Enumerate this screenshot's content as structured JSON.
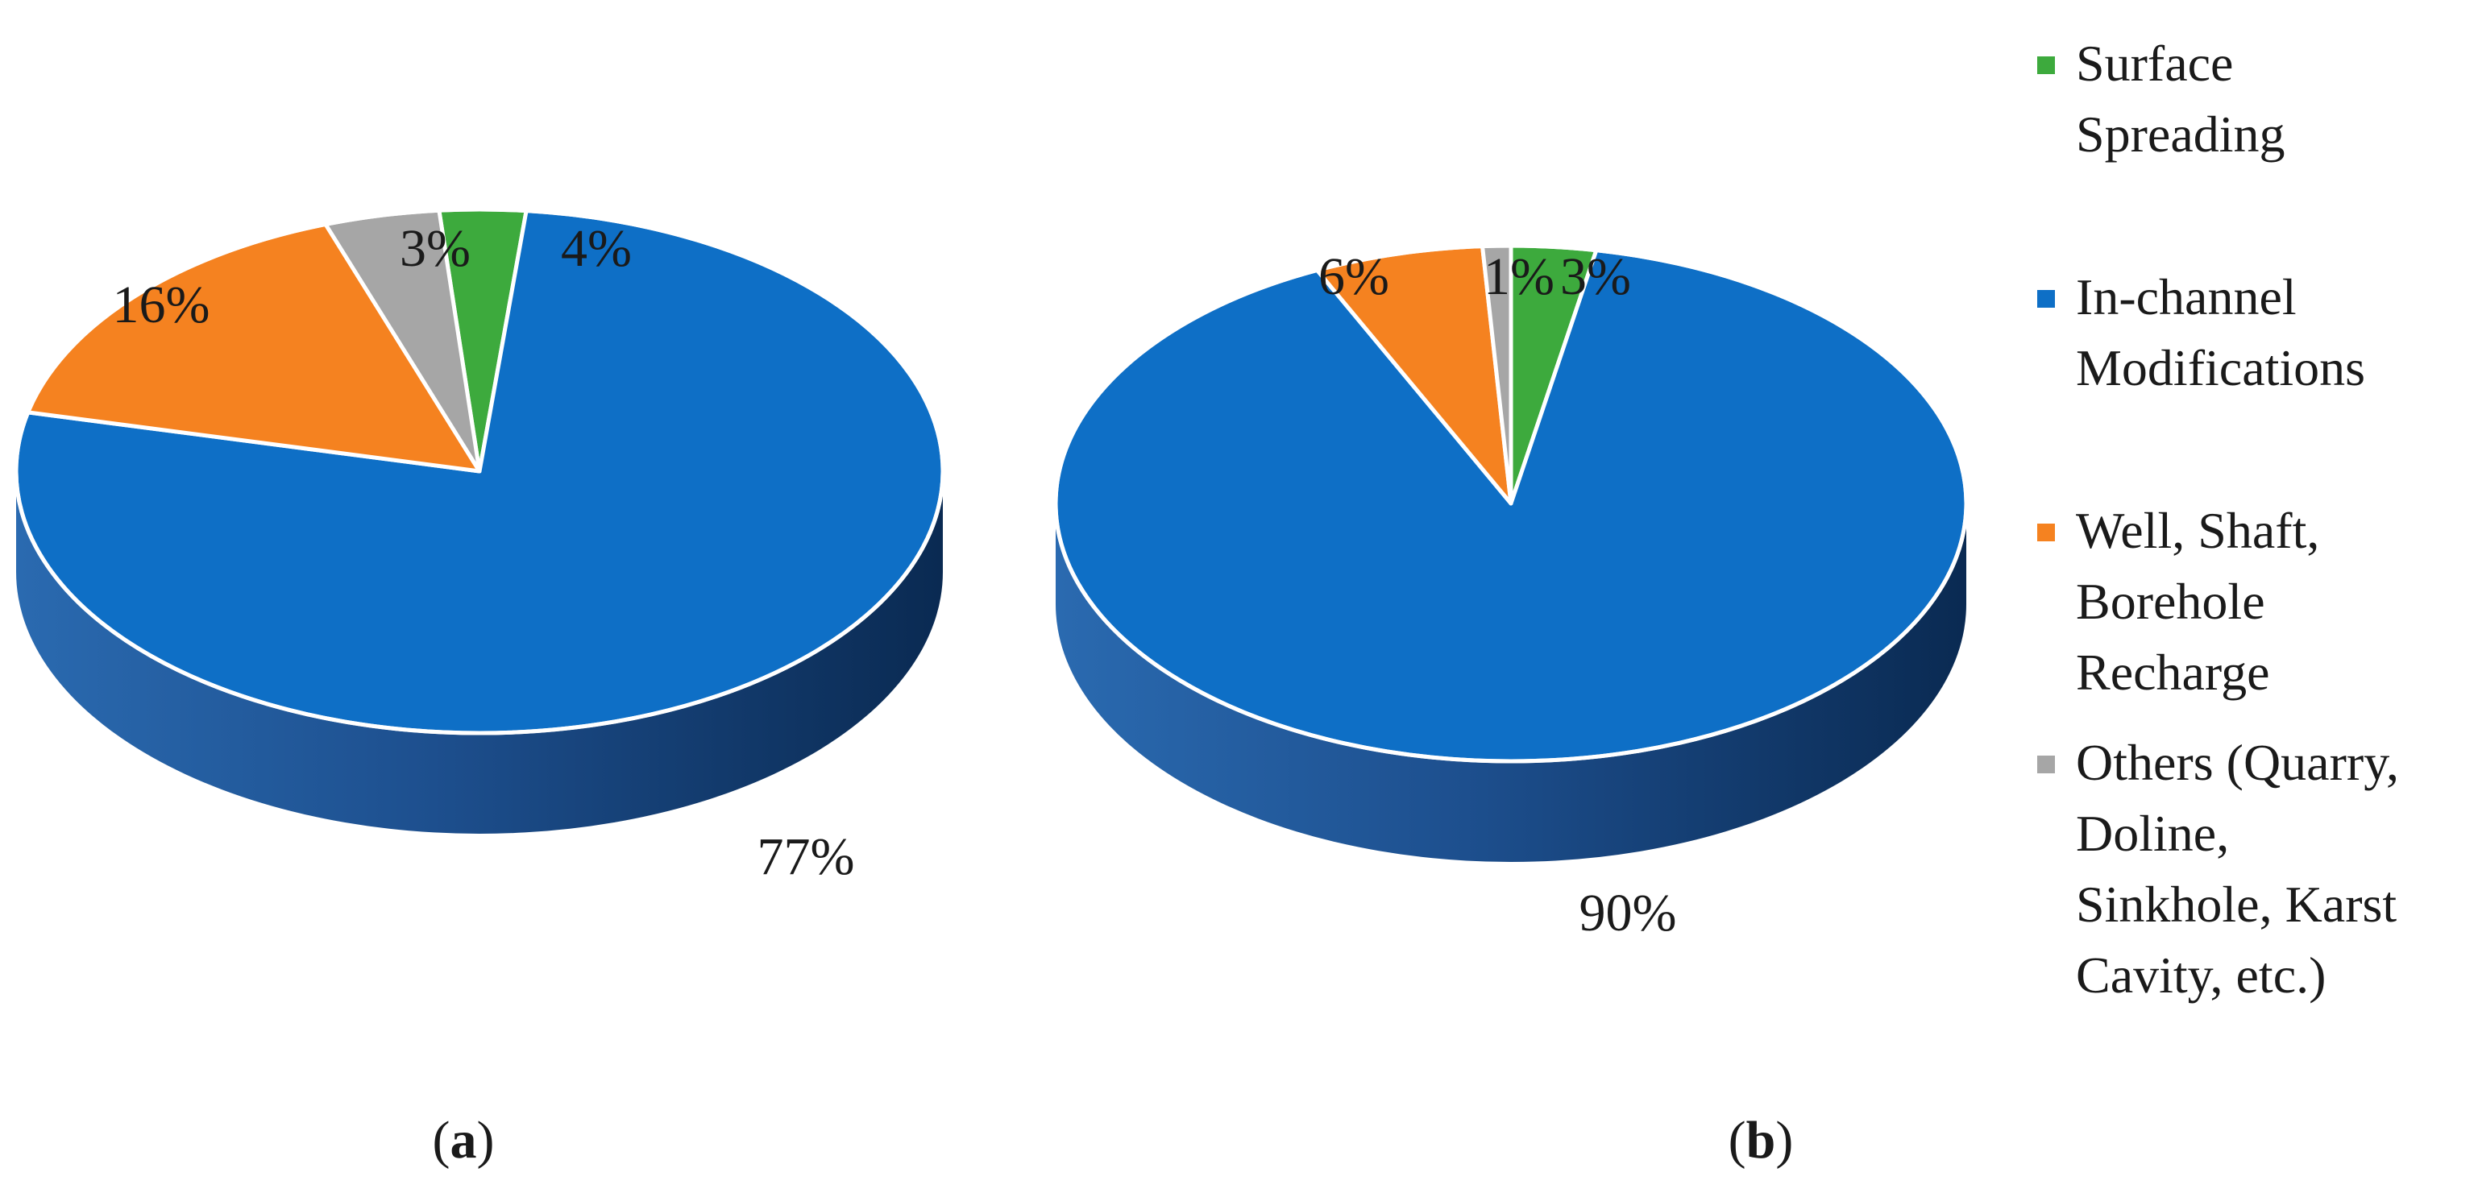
{
  "chart_data": [
    {
      "type": "pie",
      "panel_label": "a",
      "slices": [
        {
          "name": "Surface Spreading",
          "value": 3,
          "label": "3%",
          "color": "#3DAA3D"
        },
        {
          "name": "In-channel Modifications",
          "value": 77,
          "label": "77%",
          "color": "#0E6FC6"
        },
        {
          "name": "Well, Shaft, Borehole Recharge",
          "value": 16,
          "label": "16%",
          "color": "#F58220"
        },
        {
          "name": "Others (Quarry, Doline, Sinkhole, Karst Cavity, etc.)",
          "value": 4,
          "label": "4%",
          "color": "#A6A6A6"
        }
      ]
    },
    {
      "type": "pie",
      "panel_label": "b",
      "slices": [
        {
          "name": "Surface Spreading",
          "value": 3,
          "label": "3%",
          "color": "#3DAA3D"
        },
        {
          "name": "In-channel Modifications",
          "value": 90,
          "label": "90%",
          "color": "#0E6FC6"
        },
        {
          "name": "Well, Shaft, Borehole Recharge",
          "value": 6,
          "label": "6%",
          "color": "#F58220"
        },
        {
          "name": "Others (Quarry, Doline, Sinkhole, Karst Cavity, etc.)",
          "value": 1,
          "label": "1%",
          "color": "#A6A6A6"
        }
      ]
    }
  ],
  "legend": [
    {
      "lines": [
        "Surface",
        "Spreading"
      ],
      "color": "#3DAA3D"
    },
    {
      "lines": [
        "In-channel",
        "Modifications"
      ],
      "color": "#0E6FC6"
    },
    {
      "lines": [
        "Well, Shaft,",
        "Borehole",
        "Recharge"
      ],
      "color": "#F58220"
    },
    {
      "lines": [
        "Others (Quarry,",
        "Doline,",
        "Sinkhole, Karst",
        "Cavity, etc.)"
      ],
      "color": "#A6A6A6"
    }
  ],
  "colors": {
    "side_light": "#2A6AB0",
    "side_dark": "#0A2A52"
  }
}
